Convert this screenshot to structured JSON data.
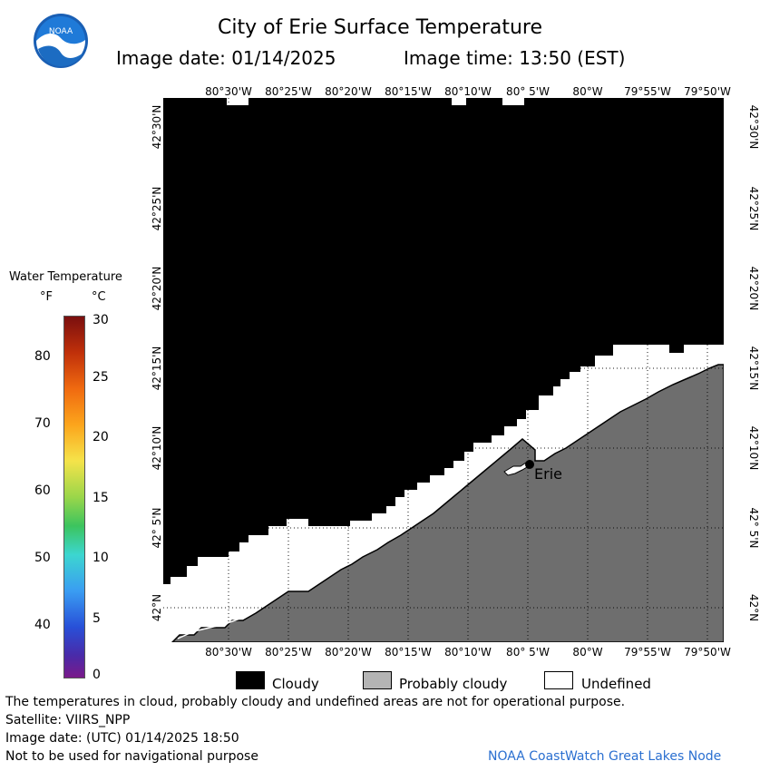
{
  "header": {
    "title": "City of Erie Surface Temperature",
    "image_date": "Image date: 01/14/2025",
    "image_time": "Image time: 13:50 (EST)"
  },
  "map": {
    "lon_labels_top": [
      "80°30'W",
      "80°25'W",
      "80°20'W",
      "80°15'W",
      "80°10'W",
      "80° 5'W",
      "80°W",
      "79°55'W",
      "79°50'W"
    ],
    "lon_labels_bottom": [
      "80°30'W",
      "80°25'W",
      "80°20'W",
      "80°15'W",
      "80°10'W",
      "80° 5'W",
      "80°W",
      "79°55'W",
      "79°50'W"
    ],
    "lat_labels": [
      "42°30'N",
      "42°25'N",
      "42°20'N",
      "42°15'N",
      "42°10'N",
      "42° 5'N",
      "42°N"
    ],
    "city_label": "Erie",
    "colors": {
      "cloudy": "#000000",
      "probably_cloudy": "#6e6e6e",
      "undefined": "#ffffff"
    }
  },
  "legend": {
    "title": "Water Temperature",
    "unit_f": "°F",
    "unit_c": "°C",
    "f_ticks": [
      "80",
      "70",
      "60",
      "50",
      "40"
    ],
    "c_ticks": [
      "30",
      "25",
      "20",
      "15",
      "10",
      "5",
      "0"
    ]
  },
  "key": {
    "cloudy": "Cloudy",
    "probably_cloudy": "Probably cloudy",
    "undefined": "Undefined"
  },
  "footer": {
    "disclaimer": "The temperatures in cloud, probably cloudy and undefined areas are not for operational purpose.",
    "satellite": "Satellite: VIIRS_NPP",
    "utc_date": "Image date: (UTC) 01/14/2025  18:50",
    "nav": "Not to be used for navigational purpose",
    "credit": "NOAA CoastWatch Great Lakes Node"
  }
}
